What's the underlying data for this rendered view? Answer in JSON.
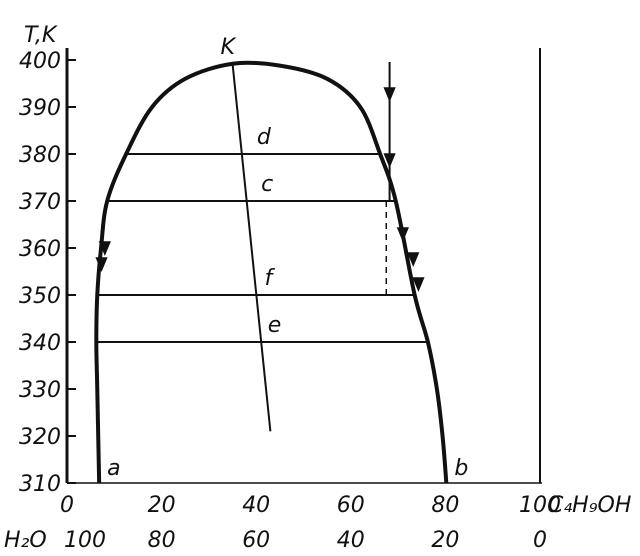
{
  "chart_data": {
    "type": "line",
    "title": "",
    "ylabel": "T,K",
    "ylim": [
      310,
      400
    ],
    "y_ticks": [
      "310",
      "320",
      "330",
      "340",
      "350",
      "360",
      "370",
      "380",
      "390",
      "400"
    ],
    "x_axis_top_label": "C₄H₉OH",
    "x_ticks_top": [
      "0",
      "20",
      "40",
      "60",
      "80",
      "100"
    ],
    "x_axis_bottom_label": "H₂O",
    "x_ticks_bottom": [
      "100",
      "80",
      "60",
      "40",
      "20",
      "0"
    ],
    "xlim": [
      0,
      100
    ],
    "series": [
      {
        "points": [
          [
            6.8,
            310
          ],
          [
            6.4,
            330
          ],
          [
            6.2,
            340
          ],
          [
            6.4,
            350
          ],
          [
            7.2,
            360
          ],
          [
            8.5,
            370
          ],
          [
            12.5,
            380
          ],
          [
            18,
            390
          ],
          [
            25,
            396
          ],
          [
            35,
            399.2
          ],
          [
            45,
            398.8
          ],
          [
            55,
            396
          ],
          [
            62,
            390
          ],
          [
            66.2,
            380
          ],
          [
            69.5,
            370
          ],
          [
            73.5,
            350
          ],
          [
            76.3,
            340
          ],
          [
            78.2,
            330
          ],
          [
            79.4,
            320
          ],
          [
            80.2,
            310
          ]
        ]
      }
    ],
    "tie_lines": [
      {
        "y": 380,
        "x1": 12.5,
        "x2": 66.2
      },
      {
        "y": 370,
        "x1": 8.5,
        "x2": 69.5
      },
      {
        "y": 350,
        "x1": 6.4,
        "x2": 73.5
      },
      {
        "y": 340,
        "x1": 6.2,
        "x2": 76.3
      }
    ],
    "rectilinear_diameter": {
      "from": [
        35,
        399.2
      ],
      "to": [
        43,
        321
      ]
    },
    "dashed_drop": {
      "x": 67.5,
      "from_y": 370,
      "to_y": 350
    },
    "right_boundary_x": 100,
    "points": [
      {
        "label": "K",
        "x": 35,
        "y": 399.2
      },
      {
        "label": "d",
        "x": 39.3,
        "y": 380
      },
      {
        "label": "c",
        "x": 40.2,
        "y": 370
      },
      {
        "label": "f",
        "x": 40.9,
        "y": 350
      },
      {
        "label": "e",
        "x": 41.6,
        "y": 340
      },
      {
        "label": "a",
        "x": 6.8,
        "y": 310
      },
      {
        "label": "b",
        "x": 80.2,
        "y": 310
      }
    ],
    "annotation_labels": {
      "K": "K",
      "d": "d",
      "c": "c",
      "f": "f",
      "e": "e",
      "a": "a",
      "b": "b"
    },
    "grid": false,
    "legend": "none"
  }
}
